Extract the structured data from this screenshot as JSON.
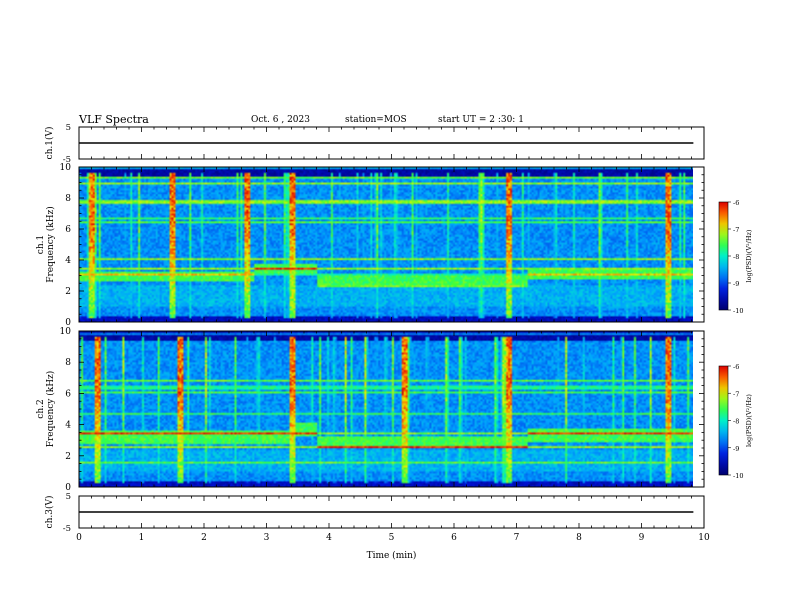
{
  "header": {
    "title": "VLF Spectra",
    "date": "Oct. 6 , 2023",
    "station": "station=MOS",
    "start": "start UT = 2 :30: 1"
  },
  "chart_data": [
    {
      "type": "line",
      "panel": "waveform-top",
      "ylabel": "ch.1(V)",
      "ylim": [
        -5,
        5
      ],
      "yticks": [
        "5",
        "-5"
      ],
      "series": [
        {
          "x": [
            0,
            9.83
          ],
          "y": [
            0,
            0
          ]
        }
      ]
    },
    {
      "type": "heatmap",
      "panel": "spectrogram-ch1",
      "ylabel": "ch.1\nFrequency (kHz)",
      "xlim": [
        0,
        10
      ],
      "ylim": [
        0,
        10
      ],
      "yticks": [
        "0",
        "2",
        "4",
        "6",
        "8",
        "10"
      ],
      "data_extent_min": 9.83,
      "colorbar": {
        "label": "log(PSD)(V²/Hz)",
        "ticks": [
          "-6",
          "-7",
          "-8",
          "-9",
          "-10"
        ],
        "range": [
          -10,
          -6
        ]
      },
      "features": {
        "band_khz": [
          2.6,
          3.3
        ],
        "band_shift_times_min": [
          2.8,
          3.8,
          7.2
        ],
        "hot_bursts_min": [
          0.2,
          1.5,
          2.7,
          3.4,
          6.9,
          9.45
        ]
      }
    },
    {
      "type": "heatmap",
      "panel": "spectrogram-ch2",
      "ylabel": "ch.2\nFrequency (kHz)",
      "xlim": [
        0,
        10
      ],
      "ylim": [
        0,
        10
      ],
      "yticks": [
        "0",
        "2",
        "4",
        "6",
        "8",
        "10"
      ],
      "data_extent_min": 9.83,
      "colorbar": {
        "label": "log(PSD)(V²/Hz)",
        "ticks": [
          "-6",
          "-7",
          "-8",
          "-9",
          "-10"
        ],
        "range": [
          -10,
          -6
        ]
      },
      "features": {
        "band_khz": [
          2.8,
          3.6
        ],
        "band_shift_times_min": [
          3.4,
          3.8,
          7.2
        ],
        "hot_bursts_min": [
          0.3,
          1.6,
          3.4,
          5.2,
          6.9,
          9.45
        ]
      }
    },
    {
      "type": "line",
      "panel": "waveform-bottom",
      "ylabel": "ch.3(V)",
      "xlabel": "Time (min)",
      "xlim": [
        0,
        10
      ],
      "xticks": [
        "0",
        "1",
        "2",
        "3",
        "4",
        "5",
        "6",
        "7",
        "8",
        "9",
        "10"
      ],
      "ylim": [
        -5,
        5
      ],
      "yticks": [
        "5",
        "-5"
      ],
      "series": [
        {
          "x": [
            0,
            9.83
          ],
          "y": [
            0,
            0
          ]
        }
      ]
    }
  ]
}
